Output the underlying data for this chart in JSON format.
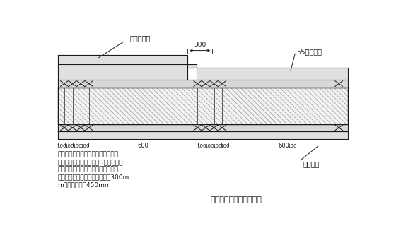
{
  "title": "大模板与小钢模连接构造",
  "label_dingxing": "定型钢模板",
  "label_55": "55型钢模板",
  "label_zhishui": "止水螺杆",
  "dim_300": "300",
  "note_text": "注：大模板与小钢模连接处，定型作\n成与小钢模孔径对应，用U型卡满布连\n接固定，墙面支撑体系按照常规做法\n柱两侧第一排止水螺杆竖向间距300m\nm，其余间距为450mm",
  "bg_color": "#ffffff",
  "line_color": "#1a1a1a",
  "wall_fill": "#f2f2f2",
  "plate_fill": "#e0e0e0",
  "strip_fill": "#d8d8d8"
}
